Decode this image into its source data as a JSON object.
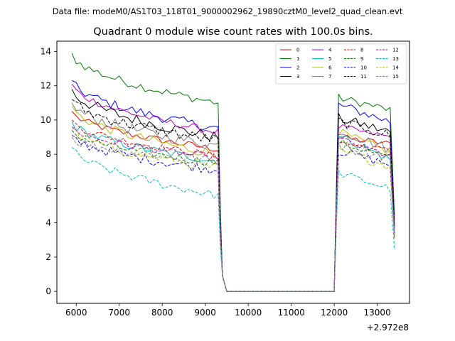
{
  "chart_data": {
    "type": "line",
    "suptitle": "Data file: modeM0/AS1T03_118T01_9000002962_19890cztM0_level2_quad_clean.evt",
    "title": "Quadrant 0 module wise count rates with 100.0s bins.",
    "xlabel": "",
    "ylabel": "",
    "x_offset_label": "+2.972e8",
    "xlim": [
      5550,
      13750
    ],
    "ylim": [
      -0.7,
      14.6
    ],
    "xticks": [
      6000,
      7000,
      8000,
      9000,
      10000,
      11000,
      12000,
      13000
    ],
    "yticks": [
      0,
      2,
      4,
      6,
      8,
      10,
      12,
      14
    ],
    "legend": {
      "position": "top-right",
      "columns": 4
    },
    "segments": [
      {
        "start": 5900,
        "end": 9300
      },
      {
        "start": 12100,
        "end": 13300
      }
    ],
    "series": [
      {
        "name": "0",
        "color": "#ff0000",
        "dash": "solid",
        "seg1": [
          10.5,
          8.3
        ],
        "seg2": [
          9.0,
          8.6
        ]
      },
      {
        "name": "1",
        "color": "#008000",
        "dash": "solid",
        "seg1": [
          13.9,
          11.0
        ],
        "seg2": [
          11.3,
          10.6
        ]
      },
      {
        "name": "2",
        "color": "#0000ff",
        "dash": "solid",
        "seg1": [
          12.3,
          9.5
        ],
        "seg2": [
          10.9,
          9.9
        ]
      },
      {
        "name": "3",
        "color": "#000000",
        "dash": "solid",
        "seg1": [
          11.8,
          9.0
        ],
        "seg2": [
          10.1,
          9.3
        ]
      },
      {
        "name": "4",
        "color": "#bf00bf",
        "dash": "solid",
        "seg1": [
          12.1,
          9.3
        ],
        "seg2": [
          9.6,
          9.0
        ]
      },
      {
        "name": "5",
        "color": "#00bfbf",
        "dash": "solid",
        "seg1": [
          9.9,
          7.6
        ],
        "seg2": [
          9.1,
          7.7
        ]
      },
      {
        "name": "6",
        "color": "#bfbf00",
        "dash": "solid",
        "seg1": [
          10.8,
          8.0
        ],
        "seg2": [
          9.3,
          8.1
        ]
      },
      {
        "name": "7",
        "color": "#808080",
        "dash": "solid",
        "seg1": [
          11.0,
          8.5
        ],
        "seg2": [
          9.4,
          8.3
        ]
      },
      {
        "name": "8",
        "color": "#ff0000",
        "dash": "dashed",
        "seg1": [
          10.0,
          7.9
        ],
        "seg2": [
          8.7,
          8.2
        ]
      },
      {
        "name": "9",
        "color": "#008000",
        "dash": "dashed",
        "seg1": [
          9.4,
          7.5
        ],
        "seg2": [
          8.7,
          7.8
        ]
      },
      {
        "name": "10",
        "color": "#0000ff",
        "dash": "dashed",
        "seg1": [
          9.1,
          7.1
        ],
        "seg2": [
          8.2,
          7.4
        ]
      },
      {
        "name": "11",
        "color": "#000000",
        "dash": "dashed",
        "seg1": [
          11.2,
          8.8
        ],
        "seg2": [
          9.9,
          9.1
        ]
      },
      {
        "name": "12",
        "color": "#bf00bf",
        "dash": "dashed",
        "seg1": [
          9.6,
          7.8
        ],
        "seg2": [
          8.9,
          7.9
        ]
      },
      {
        "name": "13",
        "color": "#00bfbf",
        "dash": "dashed",
        "seg1": [
          8.4,
          5.6
        ],
        "seg2": [
          6.9,
          6.0
        ]
      },
      {
        "name": "14",
        "color": "#bfbf00",
        "dash": "dashed",
        "seg1": [
          9.5,
          7.2
        ],
        "seg2": [
          8.2,
          7.3
        ]
      },
      {
        "name": "15",
        "color": "#808080",
        "dash": "dashed",
        "seg1": [
          9.0,
          7.6
        ],
        "seg2": [
          8.6,
          7.8
        ]
      }
    ]
  }
}
